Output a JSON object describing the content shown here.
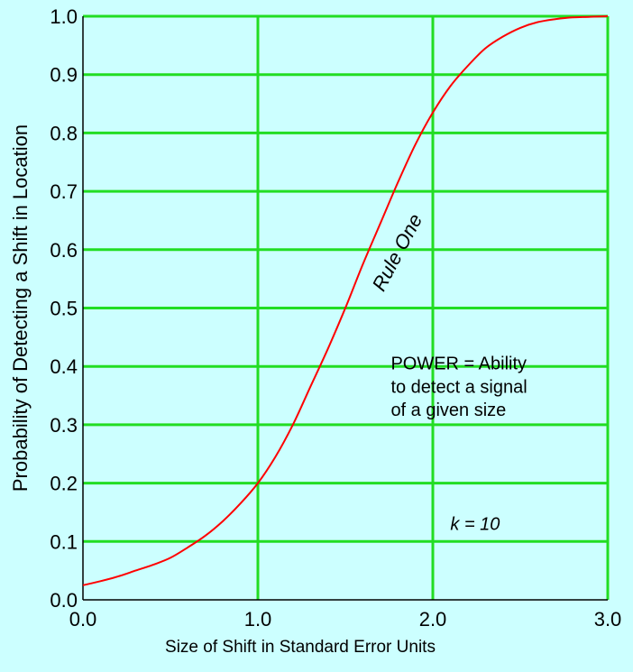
{
  "chart_data": {
    "type": "line",
    "title": "",
    "xlabel": "Size of Shift in Standard Error Units",
    "ylabel": "Probability of Detecting a Shift in Location",
    "xlim": [
      0.0,
      3.0
    ],
    "ylim": [
      0.0,
      1.0
    ],
    "x_ticks": [
      0.0,
      1.0,
      2.0,
      3.0
    ],
    "x_tick_labels": [
      "0.0",
      "1.0",
      "2.0",
      "3.0"
    ],
    "y_ticks": [
      0.0,
      0.1,
      0.2,
      0.3,
      0.4,
      0.5,
      0.6,
      0.7,
      0.8,
      0.9,
      1.0
    ],
    "y_tick_labels": [
      "0.0",
      "0.1",
      "0.2",
      "0.3",
      "0.4",
      "0.5",
      "0.6",
      "0.7",
      "0.8",
      "0.9",
      "1.0"
    ],
    "grid": true,
    "series": [
      {
        "name": "Rule One",
        "color": "#ff0000",
        "x": [
          0.0,
          0.1,
          0.2,
          0.3,
          0.4,
          0.5,
          0.6,
          0.7,
          0.8,
          0.9,
          1.0,
          1.1,
          1.2,
          1.3,
          1.4,
          1.5,
          1.6,
          1.7,
          1.8,
          1.9,
          2.0,
          2.1,
          2.2,
          2.3,
          2.4,
          2.5,
          2.6,
          2.7,
          2.8,
          2.9,
          3.0
        ],
        "y": [
          0.025,
          0.032,
          0.04,
          0.05,
          0.06,
          0.072,
          0.09,
          0.11,
          0.135,
          0.165,
          0.2,
          0.245,
          0.3,
          0.365,
          0.43,
          0.5,
          0.575,
          0.645,
          0.715,
          0.78,
          0.835,
          0.88,
          0.915,
          0.945,
          0.965,
          0.98,
          0.99,
          0.995,
          0.998,
          0.999,
          1.0
        ]
      }
    ],
    "annotations": [
      {
        "text": "Rule One",
        "x": 1.83,
        "y": 0.59,
        "rotation_deg": -62,
        "italic": true
      },
      {
        "text": "POWER = Ability",
        "x": 1.76,
        "y": 0.395
      },
      {
        "text": "to detect a signal",
        "x": 1.76,
        "y": 0.355
      },
      {
        "text": "of a given size",
        "x": 1.76,
        "y": 0.315
      },
      {
        "text": "k = 10",
        "x": 2.1,
        "y": 0.12,
        "italic": true
      }
    ],
    "colors": {
      "background": "#ccffff",
      "grid": "#22dd22",
      "axis": "#000000",
      "line": "#ff0000"
    }
  }
}
